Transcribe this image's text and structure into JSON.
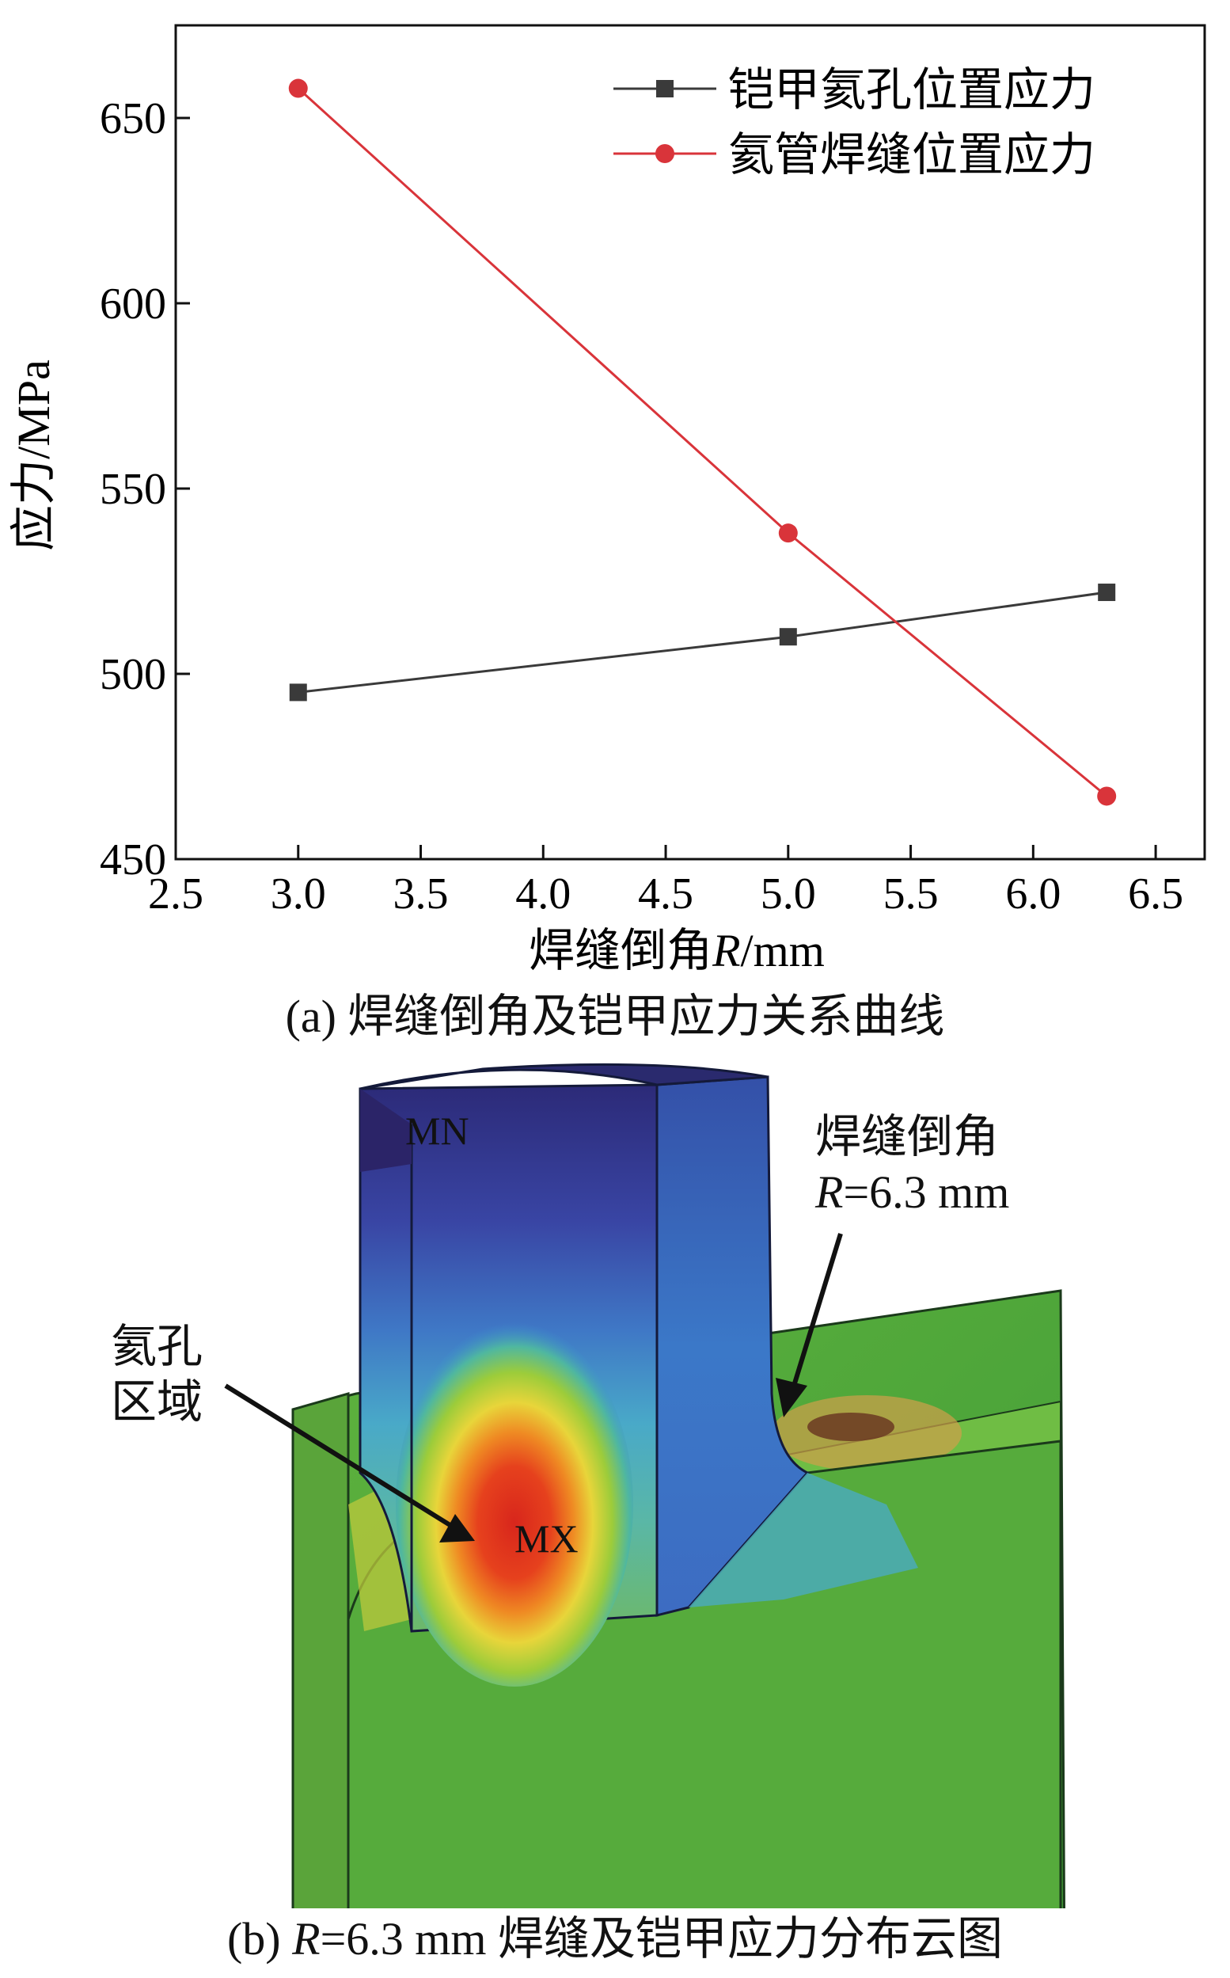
{
  "chart_data": {
    "type": "line",
    "xlabel": {
      "prefix": "焊缝倒角",
      "var": "R",
      "unit": "/mm"
    },
    "ylabel": "应力/MPa",
    "xlim": [
      2.5,
      6.7
    ],
    "ylim": [
      450,
      675
    ],
    "xticks": [
      "2.5",
      "3.0",
      "3.5",
      "4.0",
      "4.5",
      "5.0",
      "5.5",
      "6.0",
      "6.5"
    ],
    "yticks": [
      "450",
      "500",
      "550",
      "600",
      "650"
    ],
    "grid": false,
    "legend_position": "top-right",
    "series": [
      {
        "name": "铠甲氦孔位置应力",
        "color": "#3a3a3a",
        "marker": "square",
        "x": [
          3.0,
          5.0,
          6.3
        ],
        "values": [
          495,
          510,
          522
        ]
      },
      {
        "name": "氦管焊缝位置应力",
        "color": "#d9343a",
        "marker": "circle",
        "x": [
          3.0,
          5.0,
          6.3
        ],
        "values": [
          658,
          538,
          467
        ]
      }
    ]
  },
  "captions": {
    "a": "(a) 焊缝倒角及铠甲应力关系曲线",
    "b_prefix": "(b) ",
    "b_var": "R",
    "b_rest": "=6.3 mm 焊缝及铠甲应力分布云图"
  },
  "figure_b": {
    "label_mn": "MN",
    "label_mx": "MX",
    "annot_weld_line1": "焊缝倒角",
    "annot_weld_var": "R",
    "annot_weld_rest": "=6.3 mm",
    "annot_hole_line1": "氦孔",
    "annot_hole_line2": "区域"
  }
}
